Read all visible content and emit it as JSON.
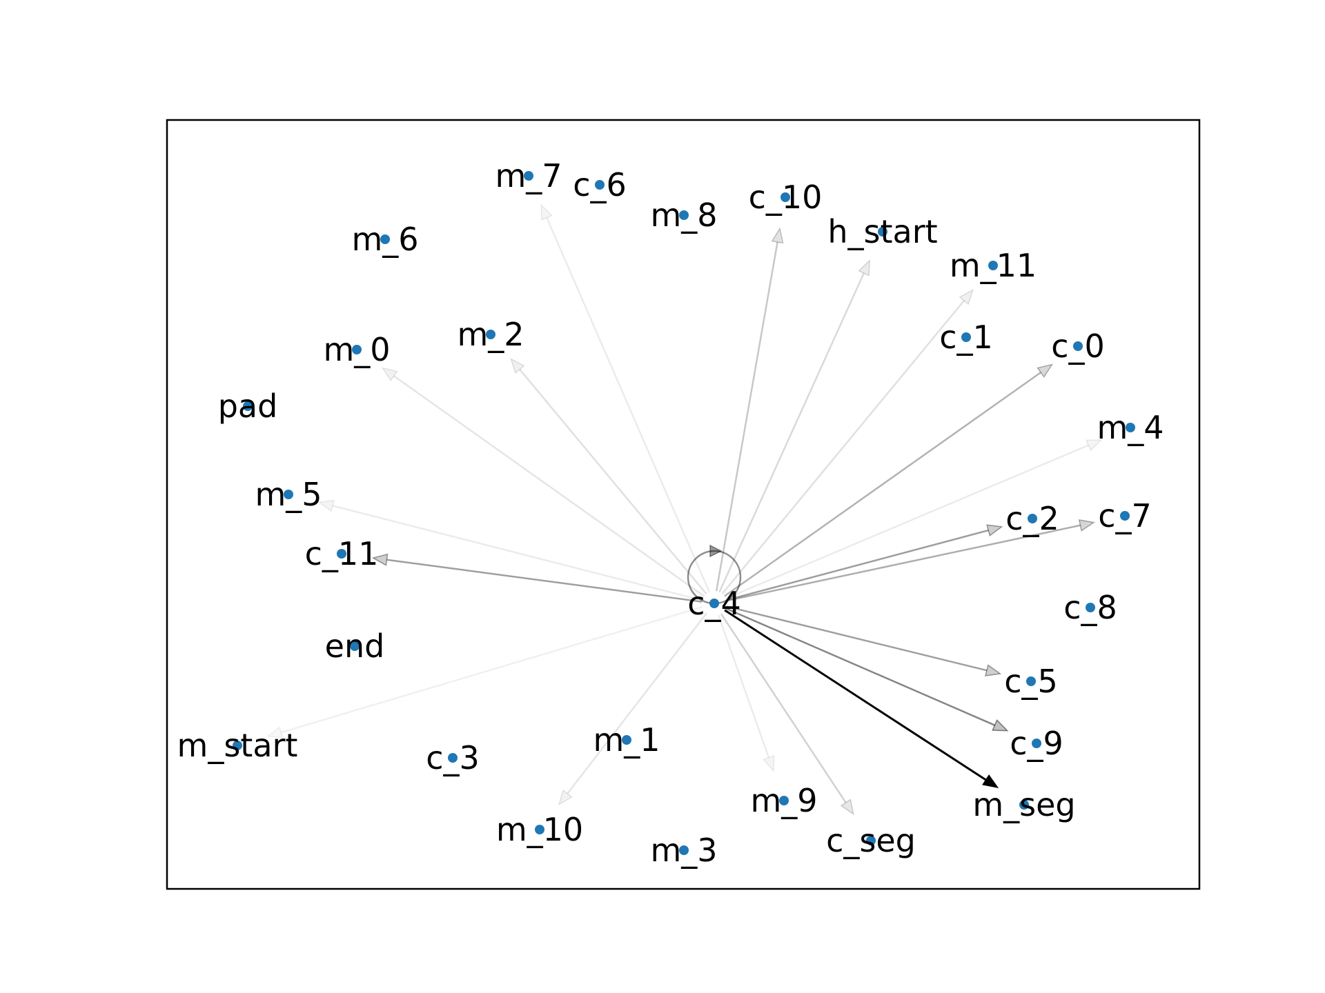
{
  "chart_data": {
    "type": "network",
    "title": "",
    "axes_visible": false,
    "focus_node": "c_4",
    "colors": {
      "node": "#1f77b4",
      "edge": "#000000",
      "label": "#000000",
      "background": "#ffffff"
    },
    "nodes": [
      "m_7",
      "c_6",
      "m_8",
      "c_10",
      "h_start",
      "m_6",
      "m_11",
      "m_2",
      "c_1",
      "m_0",
      "c_0",
      "pad",
      "m_4",
      "m_5",
      "c_2",
      "c_7",
      "c_11",
      "c_4",
      "c_8",
      "end",
      "c_5",
      "m_1",
      "c_9",
      "m_start",
      "c_3",
      "m_9",
      "m_seg",
      "m_10",
      "c_seg",
      "m_3"
    ],
    "edges": [
      {
        "source": "c_4",
        "target": "c_4",
        "weight": 0.45
      },
      {
        "source": "c_4",
        "target": "m_7",
        "weight": 0.08
      },
      {
        "source": "c_4",
        "target": "c_10",
        "weight": 0.22
      },
      {
        "source": "c_4",
        "target": "h_start",
        "weight": 0.15
      },
      {
        "source": "c_4",
        "target": "m_11",
        "weight": 0.12
      },
      {
        "source": "c_4",
        "target": "c_0",
        "weight": 0.3
      },
      {
        "source": "c_4",
        "target": "m_4",
        "weight": 0.08
      },
      {
        "source": "c_4",
        "target": "c_2",
        "weight": 0.38
      },
      {
        "source": "c_4",
        "target": "c_7",
        "weight": 0.32
      },
      {
        "source": "c_4",
        "target": "m_2",
        "weight": 0.12
      },
      {
        "source": "c_4",
        "target": "m_0",
        "weight": 0.1
      },
      {
        "source": "c_4",
        "target": "m_5",
        "weight": 0.08
      },
      {
        "source": "c_4",
        "target": "c_11",
        "weight": 0.38
      },
      {
        "source": "c_4",
        "target": "m_start",
        "weight": 0.06
      },
      {
        "source": "c_4",
        "target": "m_10",
        "weight": 0.1
      },
      {
        "source": "c_4",
        "target": "m_9",
        "weight": 0.08
      },
      {
        "source": "c_4",
        "target": "c_seg",
        "weight": 0.18
      },
      {
        "source": "c_4",
        "target": "c_5",
        "weight": 0.38
      },
      {
        "source": "c_4",
        "target": "c_9",
        "weight": 0.48
      },
      {
        "source": "c_4",
        "target": "m_seg",
        "weight": 1.0
      }
    ]
  }
}
